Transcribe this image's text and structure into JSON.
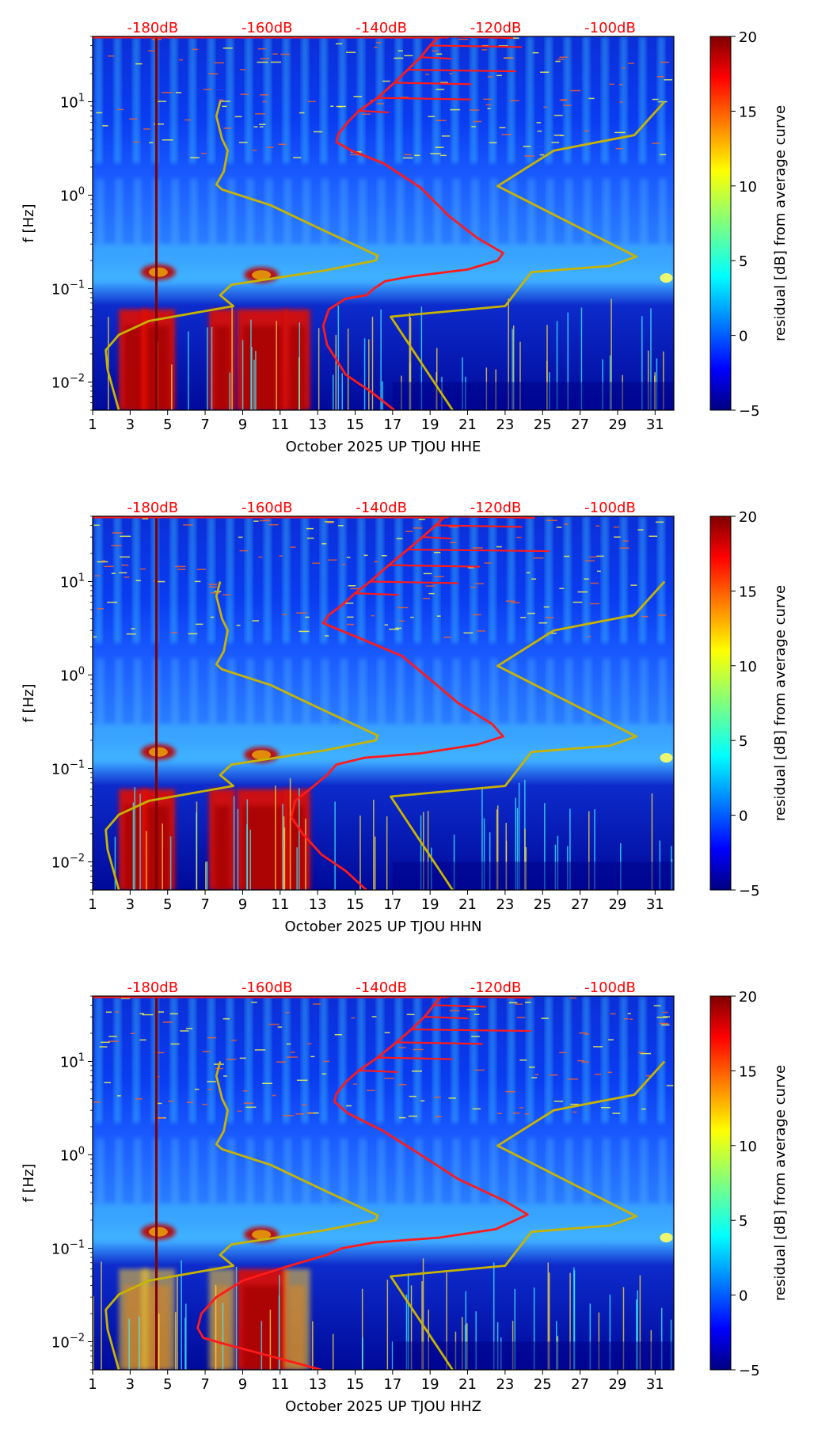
{
  "colors": {
    "red_curve": "#ff1a1a",
    "model_curve": "#c8b400",
    "db_label": "#ff0000",
    "axis": "#000000"
  },
  "chart_data": [
    {
      "type": "heatmap",
      "title": "",
      "xlabel": "October 2025 UP TJOU  HHE",
      "ylabel": "f [Hz]",
      "x_ticks": [
        "1",
        "3",
        "5",
        "7",
        "9",
        "11",
        "13",
        "15",
        "17",
        "19",
        "21",
        "23",
        "25",
        "27",
        "29",
        "31"
      ],
      "xlim": [
        1,
        32
      ],
      "y_scale": "log",
      "ylim": [
        0.005,
        50
      ],
      "y_ticks": [
        "10^-2",
        "10^-1",
        "10^0",
        "10^1"
      ],
      "top_db_labels": [
        "-180dB",
        "-160dB",
        "-140dB",
        "-120dB",
        "-100dB"
      ],
      "colorbar": {
        "label": "residual [dB] from average curve",
        "range": [
          -5,
          20
        ],
        "ticks": [
          "−5",
          "0",
          "5",
          "10",
          "15",
          "20"
        ]
      },
      "series": [
        {
          "name": "average PSD curve",
          "color": "red",
          "points": [
            [
              17.1,
              0.005
            ],
            [
              15.8,
              0.008
            ],
            [
              14.5,
              0.012
            ],
            [
              13.5,
              0.025
            ],
            [
              13.3,
              0.04
            ],
            [
              13.6,
              0.06
            ],
            [
              14.5,
              0.078
            ],
            [
              15.6,
              0.085
            ],
            [
              16.0,
              0.1
            ],
            [
              16.6,
              0.12
            ],
            [
              18.0,
              0.135
            ],
            [
              21.0,
              0.16
            ],
            [
              22.6,
              0.2
            ],
            [
              22.9,
              0.24
            ],
            [
              21.5,
              0.35
            ],
            [
              20.0,
              0.6
            ],
            [
              18.5,
              1.2
            ],
            [
              16.5,
              2.2
            ],
            [
              14.8,
              3.0
            ],
            [
              14.0,
              3.7
            ],
            [
              14.1,
              4.5
            ],
            [
              14.6,
              6.0
            ],
            [
              15.2,
              8.0
            ],
            [
              16.2,
              11.0
            ],
            [
              17.1,
              16.0
            ],
            [
              17.8,
              22.0
            ],
            [
              18.5,
              30.0
            ],
            [
              19.0,
              40.0
            ],
            [
              19.5,
              50.0
            ]
          ]
        },
        {
          "name": "noise model (high)",
          "color": "yellow",
          "points": [
            [
              20.2,
              0.005
            ],
            [
              16.9,
              0.05
            ],
            [
              23.0,
              0.065
            ],
            [
              24.4,
              0.15
            ],
            [
              28.6,
              0.175
            ],
            [
              30.0,
              0.22
            ],
            [
              22.6,
              1.25
            ],
            [
              25.6,
              3.0
            ],
            [
              29.9,
              4.4
            ],
            [
              31.5,
              10.0
            ]
          ]
        },
        {
          "name": "noise model (low)",
          "color": "yellow",
          "points": [
            [
              2.4,
              0.005
            ],
            [
              1.8,
              0.0135
            ],
            [
              1.7,
              0.022
            ],
            [
              2.4,
              0.032
            ],
            [
              4.0,
              0.045
            ],
            [
              8.5,
              0.065
            ],
            [
              7.8,
              0.085
            ],
            [
              8.4,
              0.11
            ],
            [
              13.3,
              0.155
            ],
            [
              16.1,
              0.2
            ],
            [
              16.2,
              0.225
            ],
            [
              13.0,
              0.45
            ],
            [
              10.5,
              0.78
            ],
            [
              7.9,
              1.15
            ],
            [
              7.6,
              1.3
            ],
            [
              8.0,
              1.8
            ],
            [
              8.2,
              3.0
            ],
            [
              7.9,
              4.0
            ],
            [
              7.6,
              7.0
            ],
            [
              7.8,
              10.0
            ]
          ]
        }
      ]
    },
    {
      "type": "heatmap",
      "title": "",
      "xlabel": "October 2025 UP TJOU  HHN",
      "ylabel": "f [Hz]",
      "x_ticks": [
        "1",
        "3",
        "5",
        "7",
        "9",
        "11",
        "13",
        "15",
        "17",
        "19",
        "21",
        "23",
        "25",
        "27",
        "29",
        "31"
      ],
      "xlim": [
        1,
        32
      ],
      "y_scale": "log",
      "ylim": [
        0.005,
        50
      ],
      "y_ticks": [
        "10^-2",
        "10^-1",
        "10^0",
        "10^1"
      ],
      "top_db_labels": [
        "-180dB",
        "-160dB",
        "-140dB",
        "-120dB",
        "-100dB"
      ],
      "colorbar": {
        "label": "residual [dB] from average curve",
        "range": [
          -5,
          20
        ],
        "ticks": [
          "−5",
          "0",
          "5",
          "10",
          "15",
          "20"
        ]
      },
      "series": [
        {
          "name": "average PSD curve",
          "color": "red",
          "points": [
            [
              15.6,
              0.005
            ],
            [
              14.5,
              0.008
            ],
            [
              13.2,
              0.012
            ],
            [
              12.2,
              0.02
            ],
            [
              11.6,
              0.03
            ],
            [
              11.8,
              0.045
            ],
            [
              12.8,
              0.065
            ],
            [
              13.5,
              0.085
            ],
            [
              14.0,
              0.11
            ],
            [
              15.5,
              0.13
            ],
            [
              18.5,
              0.145
            ],
            [
              21.5,
              0.18
            ],
            [
              22.9,
              0.22
            ],
            [
              22.3,
              0.3
            ],
            [
              20.5,
              0.5
            ],
            [
              19.0,
              0.9
            ],
            [
              17.5,
              1.6
            ],
            [
              15.2,
              2.5
            ],
            [
              13.9,
              3.2
            ],
            [
              13.3,
              3.6
            ],
            [
              13.6,
              4.4
            ],
            [
              14.3,
              5.6
            ],
            [
              15.0,
              7.5
            ],
            [
              15.8,
              10.0
            ],
            [
              16.8,
              15.0
            ],
            [
              17.8,
              22.0
            ],
            [
              18.6,
              30.0
            ],
            [
              19.3,
              40.0
            ],
            [
              19.8,
              50.0
            ]
          ]
        },
        {
          "name": "noise model (high)",
          "color": "yellow",
          "points": [
            [
              20.2,
              0.005
            ],
            [
              16.9,
              0.05
            ],
            [
              23.0,
              0.065
            ],
            [
              24.4,
              0.15
            ],
            [
              28.6,
              0.175
            ],
            [
              30.0,
              0.22
            ],
            [
              22.6,
              1.25
            ],
            [
              25.6,
              3.0
            ],
            [
              29.9,
              4.4
            ],
            [
              31.5,
              10.0
            ]
          ]
        },
        {
          "name": "noise model (low)",
          "color": "yellow",
          "points": [
            [
              2.4,
              0.005
            ],
            [
              1.8,
              0.0135
            ],
            [
              1.7,
              0.022
            ],
            [
              2.4,
              0.032
            ],
            [
              4.0,
              0.045
            ],
            [
              8.5,
              0.065
            ],
            [
              7.8,
              0.085
            ],
            [
              8.4,
              0.11
            ],
            [
              13.3,
              0.155
            ],
            [
              16.1,
              0.2
            ],
            [
              16.2,
              0.225
            ],
            [
              13.0,
              0.45
            ],
            [
              10.5,
              0.78
            ],
            [
              7.9,
              1.15
            ],
            [
              7.6,
              1.3
            ],
            [
              8.0,
              1.8
            ],
            [
              8.2,
              3.0
            ],
            [
              7.9,
              4.0
            ],
            [
              7.6,
              7.0
            ],
            [
              7.8,
              10.0
            ]
          ]
        }
      ]
    },
    {
      "type": "heatmap",
      "title": "",
      "xlabel": "October 2025 UP TJOU  HHZ",
      "ylabel": "f [Hz]",
      "x_ticks": [
        "1",
        "3",
        "5",
        "7",
        "9",
        "11",
        "13",
        "15",
        "17",
        "19",
        "21",
        "23",
        "25",
        "27",
        "29",
        "31"
      ],
      "xlim": [
        1,
        32
      ],
      "y_scale": "log",
      "ylim": [
        0.005,
        50
      ],
      "y_ticks": [
        "10^-2",
        "10^-1",
        "10^0",
        "10^1"
      ],
      "top_db_labels": [
        "-180dB",
        "-160dB",
        "-140dB",
        "-120dB",
        "-100dB"
      ],
      "colorbar": {
        "label": "residual [dB] from average curve",
        "range": [
          -5,
          20
        ],
        "ticks": [
          "−5",
          "0",
          "5",
          "10",
          "15",
          "20"
        ]
      },
      "series": [
        {
          "name": "average PSD curve",
          "color": "red",
          "points": [
            [
              13.2,
              0.005
            ],
            [
              10.5,
              0.007
            ],
            [
              8.0,
              0.0095
            ],
            [
              6.9,
              0.011
            ],
            [
              6.6,
              0.014
            ],
            [
              6.8,
              0.02
            ],
            [
              7.6,
              0.03
            ],
            [
              9.0,
              0.045
            ],
            [
              11.5,
              0.065
            ],
            [
              13.5,
              0.085
            ],
            [
              14.3,
              0.1
            ],
            [
              16.0,
              0.115
            ],
            [
              19.5,
              0.13
            ],
            [
              22.5,
              0.16
            ],
            [
              24.2,
              0.23
            ],
            [
              23.0,
              0.32
            ],
            [
              20.5,
              0.55
            ],
            [
              18.5,
              1.0
            ],
            [
              16.5,
              1.8
            ],
            [
              14.6,
              2.8
            ],
            [
              13.9,
              3.7
            ],
            [
              14.0,
              4.5
            ],
            [
              14.5,
              6.0
            ],
            [
              15.2,
              8.0
            ],
            [
              16.2,
              11.0
            ],
            [
              17.2,
              16.0
            ],
            [
              18.0,
              22.0
            ],
            [
              18.7,
              30.0
            ],
            [
              19.2,
              40.0
            ],
            [
              19.6,
              50.0
            ]
          ]
        },
        {
          "name": "noise model (high)",
          "color": "yellow",
          "points": [
            [
              20.2,
              0.005
            ],
            [
              16.9,
              0.05
            ],
            [
              23.0,
              0.065
            ],
            [
              24.4,
              0.15
            ],
            [
              28.6,
              0.175
            ],
            [
              30.0,
              0.22
            ],
            [
              22.6,
              1.25
            ],
            [
              25.6,
              3.0
            ],
            [
              29.9,
              4.4
            ],
            [
              31.5,
              10.0
            ]
          ]
        },
        {
          "name": "noise model (low)",
          "color": "yellow",
          "points": [
            [
              2.4,
              0.005
            ],
            [
              1.8,
              0.0135
            ],
            [
              1.7,
              0.022
            ],
            [
              2.4,
              0.032
            ],
            [
              4.0,
              0.045
            ],
            [
              8.5,
              0.065
            ],
            [
              7.8,
              0.085
            ],
            [
              8.4,
              0.11
            ],
            [
              13.3,
              0.155
            ],
            [
              16.1,
              0.2
            ],
            [
              16.2,
              0.225
            ],
            [
              13.0,
              0.45
            ],
            [
              10.5,
              0.78
            ],
            [
              7.9,
              1.15
            ],
            [
              7.6,
              1.3
            ],
            [
              8.0,
              1.8
            ],
            [
              8.2,
              3.0
            ],
            [
              7.9,
              4.0
            ],
            [
              7.6,
              7.0
            ],
            [
              7.8,
              10.0
            ]
          ]
        }
      ]
    }
  ]
}
